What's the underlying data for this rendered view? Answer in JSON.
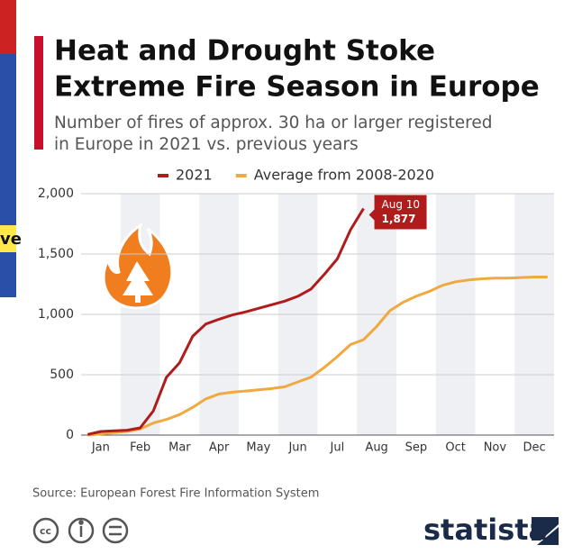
{
  "chart_data": {
    "type": "line",
    "title": [
      "Heat and Drought Stoke",
      "Extreme Fire Season in Europe"
    ],
    "subtitle": [
      "Number of fires of approx. 30 ha or larger registered",
      "in Europe in 2021 vs. previous years"
    ],
    "categories": [
      null,
      "Jan",
      null,
      null,
      "Feb",
      null,
      null,
      "Mar",
      null,
      null,
      "Apr",
      null,
      null,
      "May",
      null,
      null,
      "Jun",
      null,
      null,
      "Jul",
      null,
      null,
      "Aug",
      null,
      null,
      "Sep",
      null,
      null,
      "Oct",
      null,
      null,
      "Nov",
      null,
      null,
      "Dec",
      null
    ],
    "series": [
      {
        "name": "2021",
        "color": "#b01c1c",
        "values": [
          5,
          30,
          35,
          40,
          60,
          200,
          480,
          600,
          820,
          920,
          960,
          995,
          1020,
          1050,
          1080,
          1110,
          1150,
          1210,
          1330,
          1460,
          1700,
          1877,
          null,
          null,
          null,
          null,
          null,
          null,
          null,
          null,
          null,
          null,
          null,
          null,
          null,
          null
        ],
        "value_labels": [
          null,
          null,
          null,
          null,
          null,
          null,
          null,
          null,
          null,
          null,
          null,
          null,
          null,
          null,
          null,
          null,
          null,
          null,
          null,
          null,
          null,
          "1,877",
          null,
          null,
          null,
          null,
          null,
          null,
          null,
          null,
          null,
          null,
          null,
          null,
          null,
          null
        ]
      },
      {
        "name": "Average from 2008-2020",
        "color": "#f0a940",
        "values": [
          0,
          10,
          20,
          30,
          50,
          100,
          130,
          170,
          230,
          300,
          340,
          355,
          365,
          375,
          385,
          400,
          440,
          480,
          560,
          650,
          750,
          790,
          900,
          1030,
          1100,
          1150,
          1190,
          1240,
          1270,
          1285,
          1295,
          1300,
          1300,
          1305,
          1310,
          1310
        ]
      }
    ],
    "annotation": "Aug 10",
    "ylim": [
      0,
      2000
    ],
    "yticks": [
      0,
      500,
      {
        "value": 1000,
        "label": "1,000"
      },
      {
        "value": 1500,
        "label": "1,500"
      },
      {
        "value": 2000,
        "label": "2,000"
      }
    ],
    "grid": true,
    "legend": "top",
    "source": "Source: European Forest Fire Information System",
    "brand": "statista",
    "background_text": "ve"
  }
}
